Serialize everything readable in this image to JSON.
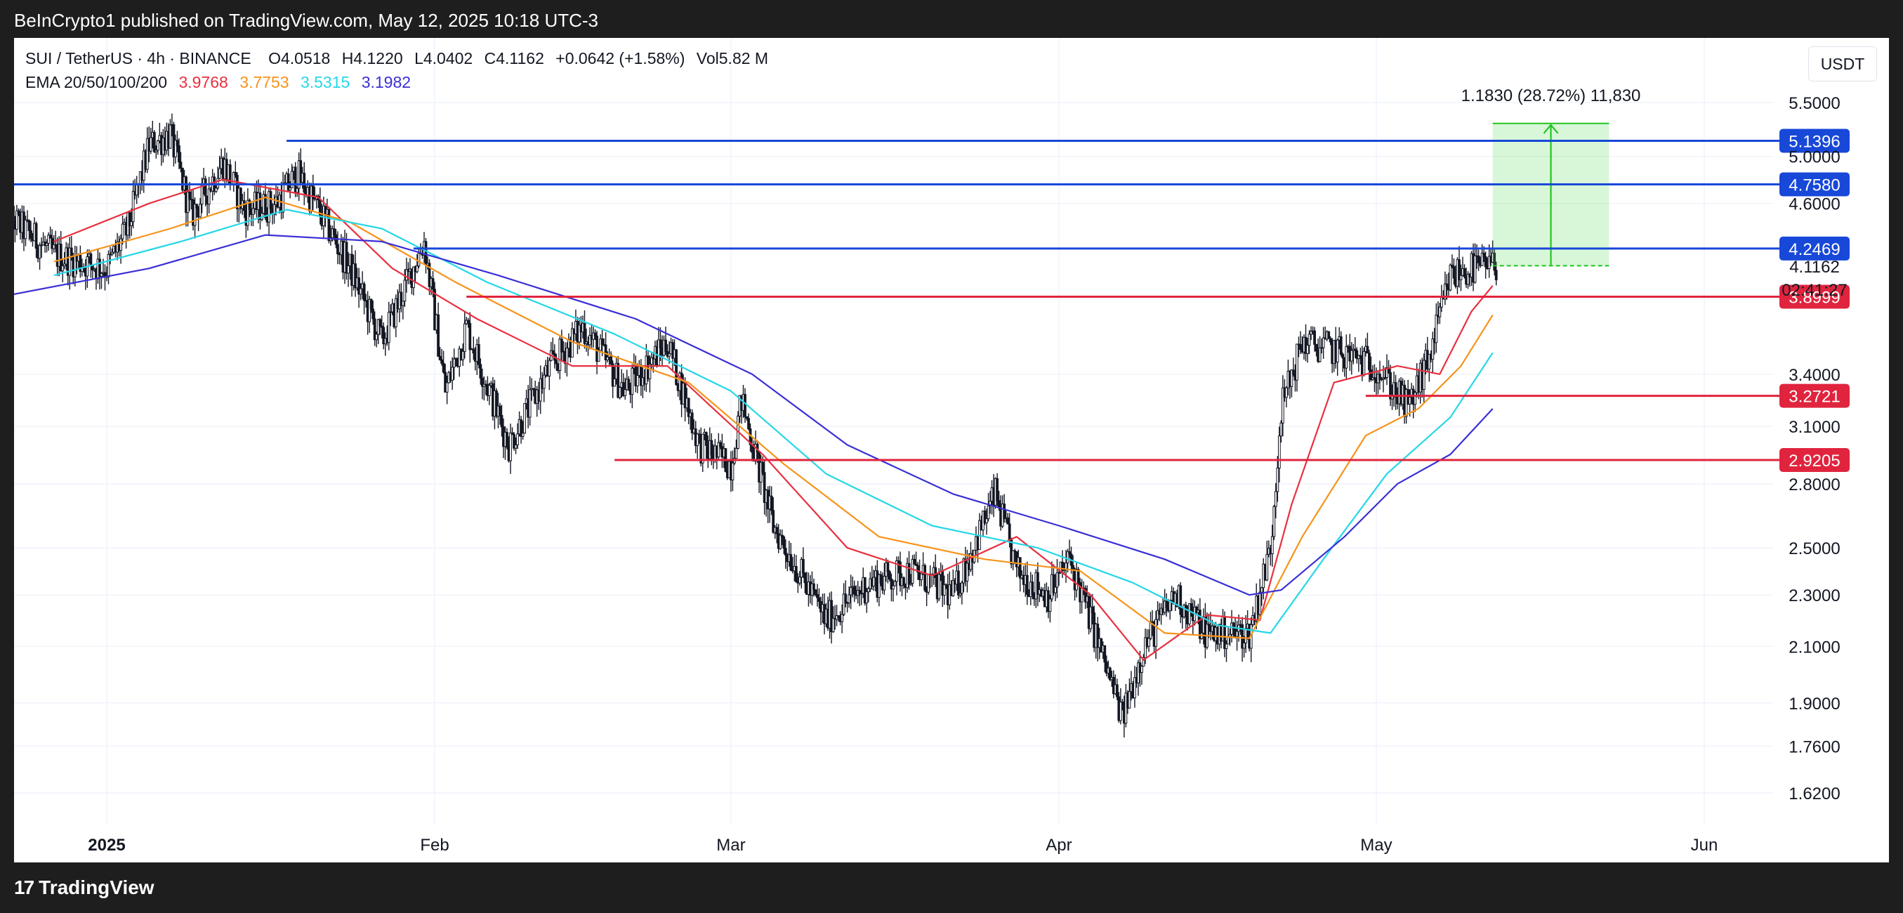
{
  "publisher": "BeInCrypto1 published on TradingView.com, May 12, 2025 10:18 UTC-3",
  "footer_brand": "TradingView",
  "header": {
    "symbol": "SUI / TetherUS · 4h · BINANCE",
    "open": "O4.0518",
    "high": "H4.1220",
    "low": "L4.0402",
    "close": "C4.1162",
    "change": "+0.0642 (+1.58%)",
    "volume": "Vol5.82 M",
    "ema_label": "EMA 20/50/100/200",
    "ema_values": [
      "3.9768",
      "3.7753",
      "3.5315",
      "3.1982"
    ],
    "currency": "USDT"
  },
  "colors": {
    "ema20": "#e8303f",
    "ema50": "#f7931a",
    "ema100": "#26d7e6",
    "ema200": "#3a2fd6",
    "resistance": "#1848d8",
    "support": "#e0243e",
    "target": "#22c322",
    "candle": "#131722"
  },
  "chart_data": {
    "type": "line",
    "title": "SUI / TetherUS · 4h · BINANCE",
    "y_scale": "log",
    "ylim": [
      1.5,
      5.85
    ],
    "y_ticks": [
      "5.5000",
      "5.0000",
      "4.6000",
      "3.4000",
      "3.1000",
      "2.8000",
      "2.5000",
      "2.3000",
      "2.1000",
      "1.9000",
      "1.7600",
      "1.6200"
    ],
    "x_ticks": [
      "2025",
      "Feb",
      "Mar",
      "Apr",
      "May",
      "Jun"
    ],
    "x_tick_dates": [
      "2025-01-01",
      "2025-02-01",
      "2025-03-01",
      "2025-04-01",
      "2025-05-01",
      "2025-06-01"
    ],
    "xlim": [
      "2024-12-22",
      "2025-06-10"
    ],
    "grid": true,
    "current_price": "4.1162",
    "countdown": "02:41:27",
    "price_path": [
      {
        "date": "2024-12-22",
        "price": 4.55
      },
      {
        "date": "2024-12-27",
        "price": 4.2
      },
      {
        "date": "2025-01-01",
        "price": 4.1
      },
      {
        "date": "2025-01-03",
        "price": 4.4
      },
      {
        "date": "2025-01-05",
        "price": 5.1
      },
      {
        "date": "2025-01-07",
        "price": 5.2
      },
      {
        "date": "2025-01-09",
        "price": 4.5
      },
      {
        "date": "2025-01-12",
        "price": 4.95
      },
      {
        "date": "2025-01-14",
        "price": 4.55
      },
      {
        "date": "2025-01-17",
        "price": 4.6
      },
      {
        "date": "2025-01-19",
        "price": 4.85
      },
      {
        "date": "2025-01-21",
        "price": 4.55
      },
      {
        "date": "2025-01-24",
        "price": 4.1
      },
      {
        "date": "2025-01-27",
        "price": 3.6
      },
      {
        "date": "2025-01-31",
        "price": 4.3
      },
      {
        "date": "2025-02-02",
        "price": 3.3
      },
      {
        "date": "2025-02-04",
        "price": 3.7
      },
      {
        "date": "2025-02-08",
        "price": 3.0
      },
      {
        "date": "2025-02-12",
        "price": 3.45
      },
      {
        "date": "2025-02-15",
        "price": 3.7
      },
      {
        "date": "2025-02-19",
        "price": 3.3
      },
      {
        "date": "2025-02-23",
        "price": 3.6
      },
      {
        "date": "2025-02-26",
        "price": 3.0
      },
      {
        "date": "2025-03-01",
        "price": 2.9
      },
      {
        "date": "2025-03-02",
        "price": 3.25
      },
      {
        "date": "2025-03-05",
        "price": 2.6
      },
      {
        "date": "2025-03-10",
        "price": 2.2
      },
      {
        "date": "2025-03-14",
        "price": 2.35
      },
      {
        "date": "2025-03-18",
        "price": 2.4
      },
      {
        "date": "2025-03-22",
        "price": 2.3
      },
      {
        "date": "2025-03-26",
        "price": 2.75
      },
      {
        "date": "2025-03-28",
        "price": 2.4
      },
      {
        "date": "2025-03-31",
        "price": 2.3
      },
      {
        "date": "2025-04-02",
        "price": 2.45
      },
      {
        "date": "2025-04-04",
        "price": 2.2
      },
      {
        "date": "2025-04-07",
        "price": 1.85
      },
      {
        "date": "2025-04-09",
        "price": 2.1
      },
      {
        "date": "2025-04-12",
        "price": 2.3
      },
      {
        "date": "2025-04-15",
        "price": 2.15
      },
      {
        "date": "2025-04-19",
        "price": 2.15
      },
      {
        "date": "2025-04-21",
        "price": 2.5
      },
      {
        "date": "2025-04-22",
        "price": 3.2
      },
      {
        "date": "2025-04-24",
        "price": 3.6
      },
      {
        "date": "2025-04-27",
        "price": 3.55
      },
      {
        "date": "2025-05-01",
        "price": 3.45
      },
      {
        "date": "2025-05-04",
        "price": 3.2
      },
      {
        "date": "2025-05-06",
        "price": 3.5
      },
      {
        "date": "2025-05-08",
        "price": 4.05
      },
      {
        "date": "2025-05-10",
        "price": 4.1
      },
      {
        "date": "2025-05-12",
        "price": 4.1162
      }
    ],
    "ema_series": [
      {
        "name": "EMA 20",
        "color": "#e8303f",
        "points": [
          {
            "date": "2024-12-27",
            "price": 4.3
          },
          {
            "date": "2025-01-05",
            "price": 4.6
          },
          {
            "date": "2025-01-12",
            "price": 4.8
          },
          {
            "date": "2025-01-21",
            "price": 4.65
          },
          {
            "date": "2025-01-28",
            "price": 4.1
          },
          {
            "date": "2025-02-05",
            "price": 3.75
          },
          {
            "date": "2025-02-14",
            "price": 3.45
          },
          {
            "date": "2025-02-23",
            "price": 3.45
          },
          {
            "date": "2025-03-04",
            "price": 2.95
          },
          {
            "date": "2025-03-12",
            "price": 2.5
          },
          {
            "date": "2025-03-20",
            "price": 2.38
          },
          {
            "date": "2025-03-28",
            "price": 2.55
          },
          {
            "date": "2025-04-04",
            "price": 2.3
          },
          {
            "date": "2025-04-09",
            "price": 2.05
          },
          {
            "date": "2025-04-15",
            "price": 2.22
          },
          {
            "date": "2025-04-20",
            "price": 2.2
          },
          {
            "date": "2025-04-23",
            "price": 2.7
          },
          {
            "date": "2025-04-27",
            "price": 3.35
          },
          {
            "date": "2025-05-03",
            "price": 3.45
          },
          {
            "date": "2025-05-07",
            "price": 3.4
          },
          {
            "date": "2025-05-10",
            "price": 3.8
          },
          {
            "date": "2025-05-12",
            "price": 3.9768
          }
        ]
      },
      {
        "name": "EMA 50",
        "color": "#f7931a",
        "points": [
          {
            "date": "2024-12-27",
            "price": 4.15
          },
          {
            "date": "2025-01-07",
            "price": 4.4
          },
          {
            "date": "2025-01-16",
            "price": 4.65
          },
          {
            "date": "2025-01-24",
            "price": 4.45
          },
          {
            "date": "2025-02-03",
            "price": 4.0
          },
          {
            "date": "2025-02-14",
            "price": 3.6
          },
          {
            "date": "2025-02-25",
            "price": 3.35
          },
          {
            "date": "2025-03-06",
            "price": 2.9
          },
          {
            "date": "2025-03-15",
            "price": 2.55
          },
          {
            "date": "2025-03-25",
            "price": 2.45
          },
          {
            "date": "2025-04-03",
            "price": 2.4
          },
          {
            "date": "2025-04-11",
            "price": 2.15
          },
          {
            "date": "2025-04-19",
            "price": 2.13
          },
          {
            "date": "2025-04-24",
            "price": 2.55
          },
          {
            "date": "2025-04-30",
            "price": 3.05
          },
          {
            "date": "2025-05-05",
            "price": 3.2
          },
          {
            "date": "2025-05-09",
            "price": 3.45
          },
          {
            "date": "2025-05-12",
            "price": 3.7753
          }
        ]
      },
      {
        "name": "EMA 100",
        "color": "#26d7e6",
        "points": [
          {
            "date": "2024-12-27",
            "price": 4.05
          },
          {
            "date": "2025-01-08",
            "price": 4.3
          },
          {
            "date": "2025-01-18",
            "price": 4.55
          },
          {
            "date": "2025-01-27",
            "price": 4.4
          },
          {
            "date": "2025-02-06",
            "price": 4.0
          },
          {
            "date": "2025-02-18",
            "price": 3.65
          },
          {
            "date": "2025-03-01",
            "price": 3.3
          },
          {
            "date": "2025-03-10",
            "price": 2.85
          },
          {
            "date": "2025-03-20",
            "price": 2.6
          },
          {
            "date": "2025-03-30",
            "price": 2.5
          },
          {
            "date": "2025-04-08",
            "price": 2.35
          },
          {
            "date": "2025-04-16",
            "price": 2.18
          },
          {
            "date": "2025-04-21",
            "price": 2.15
          },
          {
            "date": "2025-04-26",
            "price": 2.45
          },
          {
            "date": "2025-05-02",
            "price": 2.85
          },
          {
            "date": "2025-05-08",
            "price": 3.15
          },
          {
            "date": "2025-05-12",
            "price": 3.5315
          }
        ]
      },
      {
        "name": "EMA 200",
        "color": "#3a2fd6",
        "points": [
          {
            "date": "2024-12-22",
            "price": 3.9
          },
          {
            "date": "2025-01-05",
            "price": 4.1
          },
          {
            "date": "2025-01-16",
            "price": 4.35
          },
          {
            "date": "2025-01-27",
            "price": 4.3
          },
          {
            "date": "2025-02-07",
            "price": 4.05
          },
          {
            "date": "2025-02-20",
            "price": 3.75
          },
          {
            "date": "2025-03-03",
            "price": 3.4
          },
          {
            "date": "2025-03-12",
            "price": 3.0
          },
          {
            "date": "2025-03-22",
            "price": 2.75
          },
          {
            "date": "2025-04-01",
            "price": 2.6
          },
          {
            "date": "2025-04-11",
            "price": 2.45
          },
          {
            "date": "2025-04-19",
            "price": 2.3
          },
          {
            "date": "2025-04-22",
            "price": 2.32
          },
          {
            "date": "2025-04-28",
            "price": 2.55
          },
          {
            "date": "2025-05-03",
            "price": 2.8
          },
          {
            "date": "2025-05-08",
            "price": 2.95
          },
          {
            "date": "2025-05-12",
            "price": 3.1982
          }
        ]
      }
    ],
    "resistance_levels": [
      {
        "label": "5.1396",
        "value": 5.1396,
        "from": "2025-01-18"
      },
      {
        "label": "4.7580",
        "value": 4.758,
        "from": "2024-12-22"
      },
      {
        "label": "4.2469",
        "value": 4.2469,
        "from": "2025-01-30"
      }
    ],
    "support_levels": [
      {
        "label": "3.8999",
        "value": 3.8999,
        "from": "2025-02-04"
      },
      {
        "label": "3.2721",
        "value": 3.2721,
        "from": "2025-04-30"
      },
      {
        "label": "2.9205",
        "value": 2.9205,
        "from": "2025-02-18"
      }
    ],
    "target_projection": {
      "label": "1.1830 (28.72%) 11,830",
      "from_date": "2025-05-12",
      "to_date": "2025-05-23",
      "from_price": 4.12,
      "to_price": 5.3
    }
  }
}
